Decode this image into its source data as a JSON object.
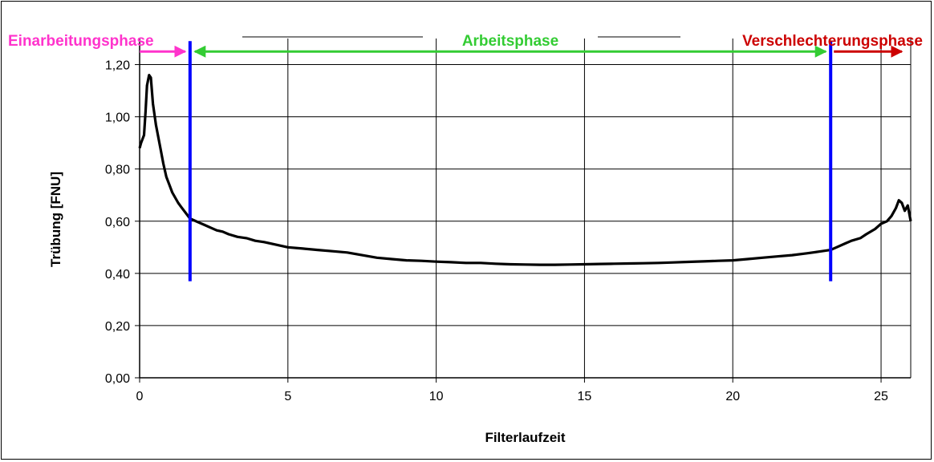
{
  "chart_data": {
    "type": "line",
    "title": "",
    "xlabel": "Filterlaufzeit",
    "ylabel": "Trübung [FNU]",
    "xlim": [
      0,
      26
    ],
    "ylim": [
      0,
      1.3
    ],
    "grid": true,
    "x_ticks": [
      {
        "value": 0,
        "label": "0"
      },
      {
        "value": 5,
        "label": "5"
      },
      {
        "value": 10,
        "label": "10"
      },
      {
        "value": 15,
        "label": "15"
      },
      {
        "value": 20,
        "label": "20"
      },
      {
        "value": 25,
        "label": "25"
      }
    ],
    "y_ticks": [
      {
        "value": 0,
        "label": "0,00"
      },
      {
        "value": 0.2,
        "label": "0,20"
      },
      {
        "value": 0.4,
        "label": "0,40"
      },
      {
        "value": 0.6,
        "label": "0,60"
      },
      {
        "value": 0.8,
        "label": "0,80"
      },
      {
        "value": 1.0,
        "label": "1,00"
      },
      {
        "value": 1.2,
        "label": "1,20"
      }
    ],
    "series": [
      {
        "color": "#000000",
        "points": [
          [
            0.0,
            0.88
          ],
          [
            0.05,
            0.9
          ],
          [
            0.15,
            0.93
          ],
          [
            0.2,
            1.02
          ],
          [
            0.25,
            1.12
          ],
          [
            0.32,
            1.16
          ],
          [
            0.38,
            1.15
          ],
          [
            0.45,
            1.05
          ],
          [
            0.55,
            0.97
          ],
          [
            0.7,
            0.88
          ],
          [
            0.8,
            0.82
          ],
          [
            0.9,
            0.77
          ],
          [
            1.0,
            0.74
          ],
          [
            1.1,
            0.71
          ],
          [
            1.2,
            0.69
          ],
          [
            1.3,
            0.67
          ],
          [
            1.4,
            0.655
          ],
          [
            1.5,
            0.64
          ],
          [
            1.6,
            0.625
          ],
          [
            1.7,
            0.61
          ],
          [
            1.8,
            0.605
          ],
          [
            2.0,
            0.595
          ],
          [
            2.2,
            0.585
          ],
          [
            2.4,
            0.575
          ],
          [
            2.6,
            0.565
          ],
          [
            2.8,
            0.56
          ],
          [
            3.0,
            0.55
          ],
          [
            3.3,
            0.54
          ],
          [
            3.6,
            0.535
          ],
          [
            3.9,
            0.525
          ],
          [
            4.2,
            0.52
          ],
          [
            4.6,
            0.51
          ],
          [
            5.0,
            0.5
          ],
          [
            5.5,
            0.495
          ],
          [
            6.0,
            0.49
          ],
          [
            6.5,
            0.485
          ],
          [
            7.0,
            0.48
          ],
          [
            7.5,
            0.47
          ],
          [
            8.0,
            0.46
          ],
          [
            8.5,
            0.455
          ],
          [
            9.0,
            0.45
          ],
          [
            9.5,
            0.448
          ],
          [
            10.0,
            0.445
          ],
          [
            10.5,
            0.443
          ],
          [
            11.0,
            0.44
          ],
          [
            11.5,
            0.44
          ],
          [
            12.0,
            0.437
          ],
          [
            12.5,
            0.435
          ],
          [
            13.0,
            0.434
          ],
          [
            13.5,
            0.433
          ],
          [
            14.0,
            0.433
          ],
          [
            14.5,
            0.434
          ],
          [
            15.0,
            0.435
          ],
          [
            15.5,
            0.436
          ],
          [
            16.0,
            0.437
          ],
          [
            16.5,
            0.438
          ],
          [
            17.0,
            0.439
          ],
          [
            17.5,
            0.44
          ],
          [
            18.0,
            0.442
          ],
          [
            18.5,
            0.444
          ],
          [
            19.0,
            0.446
          ],
          [
            19.5,
            0.448
          ],
          [
            20.0,
            0.45
          ],
          [
            20.5,
            0.455
          ],
          [
            21.0,
            0.46
          ],
          [
            21.5,
            0.465
          ],
          [
            22.0,
            0.47
          ],
          [
            22.5,
            0.477
          ],
          [
            23.0,
            0.485
          ],
          [
            23.3,
            0.49
          ],
          [
            23.5,
            0.5
          ],
          [
            23.8,
            0.515
          ],
          [
            24.0,
            0.525
          ],
          [
            24.3,
            0.535
          ],
          [
            24.5,
            0.55
          ],
          [
            24.8,
            0.57
          ],
          [
            25.0,
            0.59
          ],
          [
            25.2,
            0.6
          ],
          [
            25.35,
            0.62
          ],
          [
            25.5,
            0.65
          ],
          [
            25.6,
            0.68
          ],
          [
            25.7,
            0.67
          ],
          [
            25.8,
            0.64
          ],
          [
            25.9,
            0.66
          ],
          [
            26.0,
            0.6
          ]
        ]
      }
    ],
    "markers": [
      {
        "x": 1.7,
        "y_from": 0.37,
        "y_to": 1.29,
        "color": "#0000ff"
      },
      {
        "x": 23.3,
        "y_from": 0.37,
        "y_to": 1.29,
        "color": "#0000ff"
      }
    ],
    "phases": [
      {
        "label": "Einarbeitungsphase",
        "color": "#ff33cc",
        "x_from": 0,
        "x_to": 1.7
      },
      {
        "label": "Arbeitsphase",
        "color": "#33cc33",
        "x_from": 1.7,
        "x_to": 23.3
      },
      {
        "label": "Verschlechterungsphase",
        "color": "#cc0000",
        "x_from": 23.3,
        "x_to": 25.7
      }
    ]
  }
}
